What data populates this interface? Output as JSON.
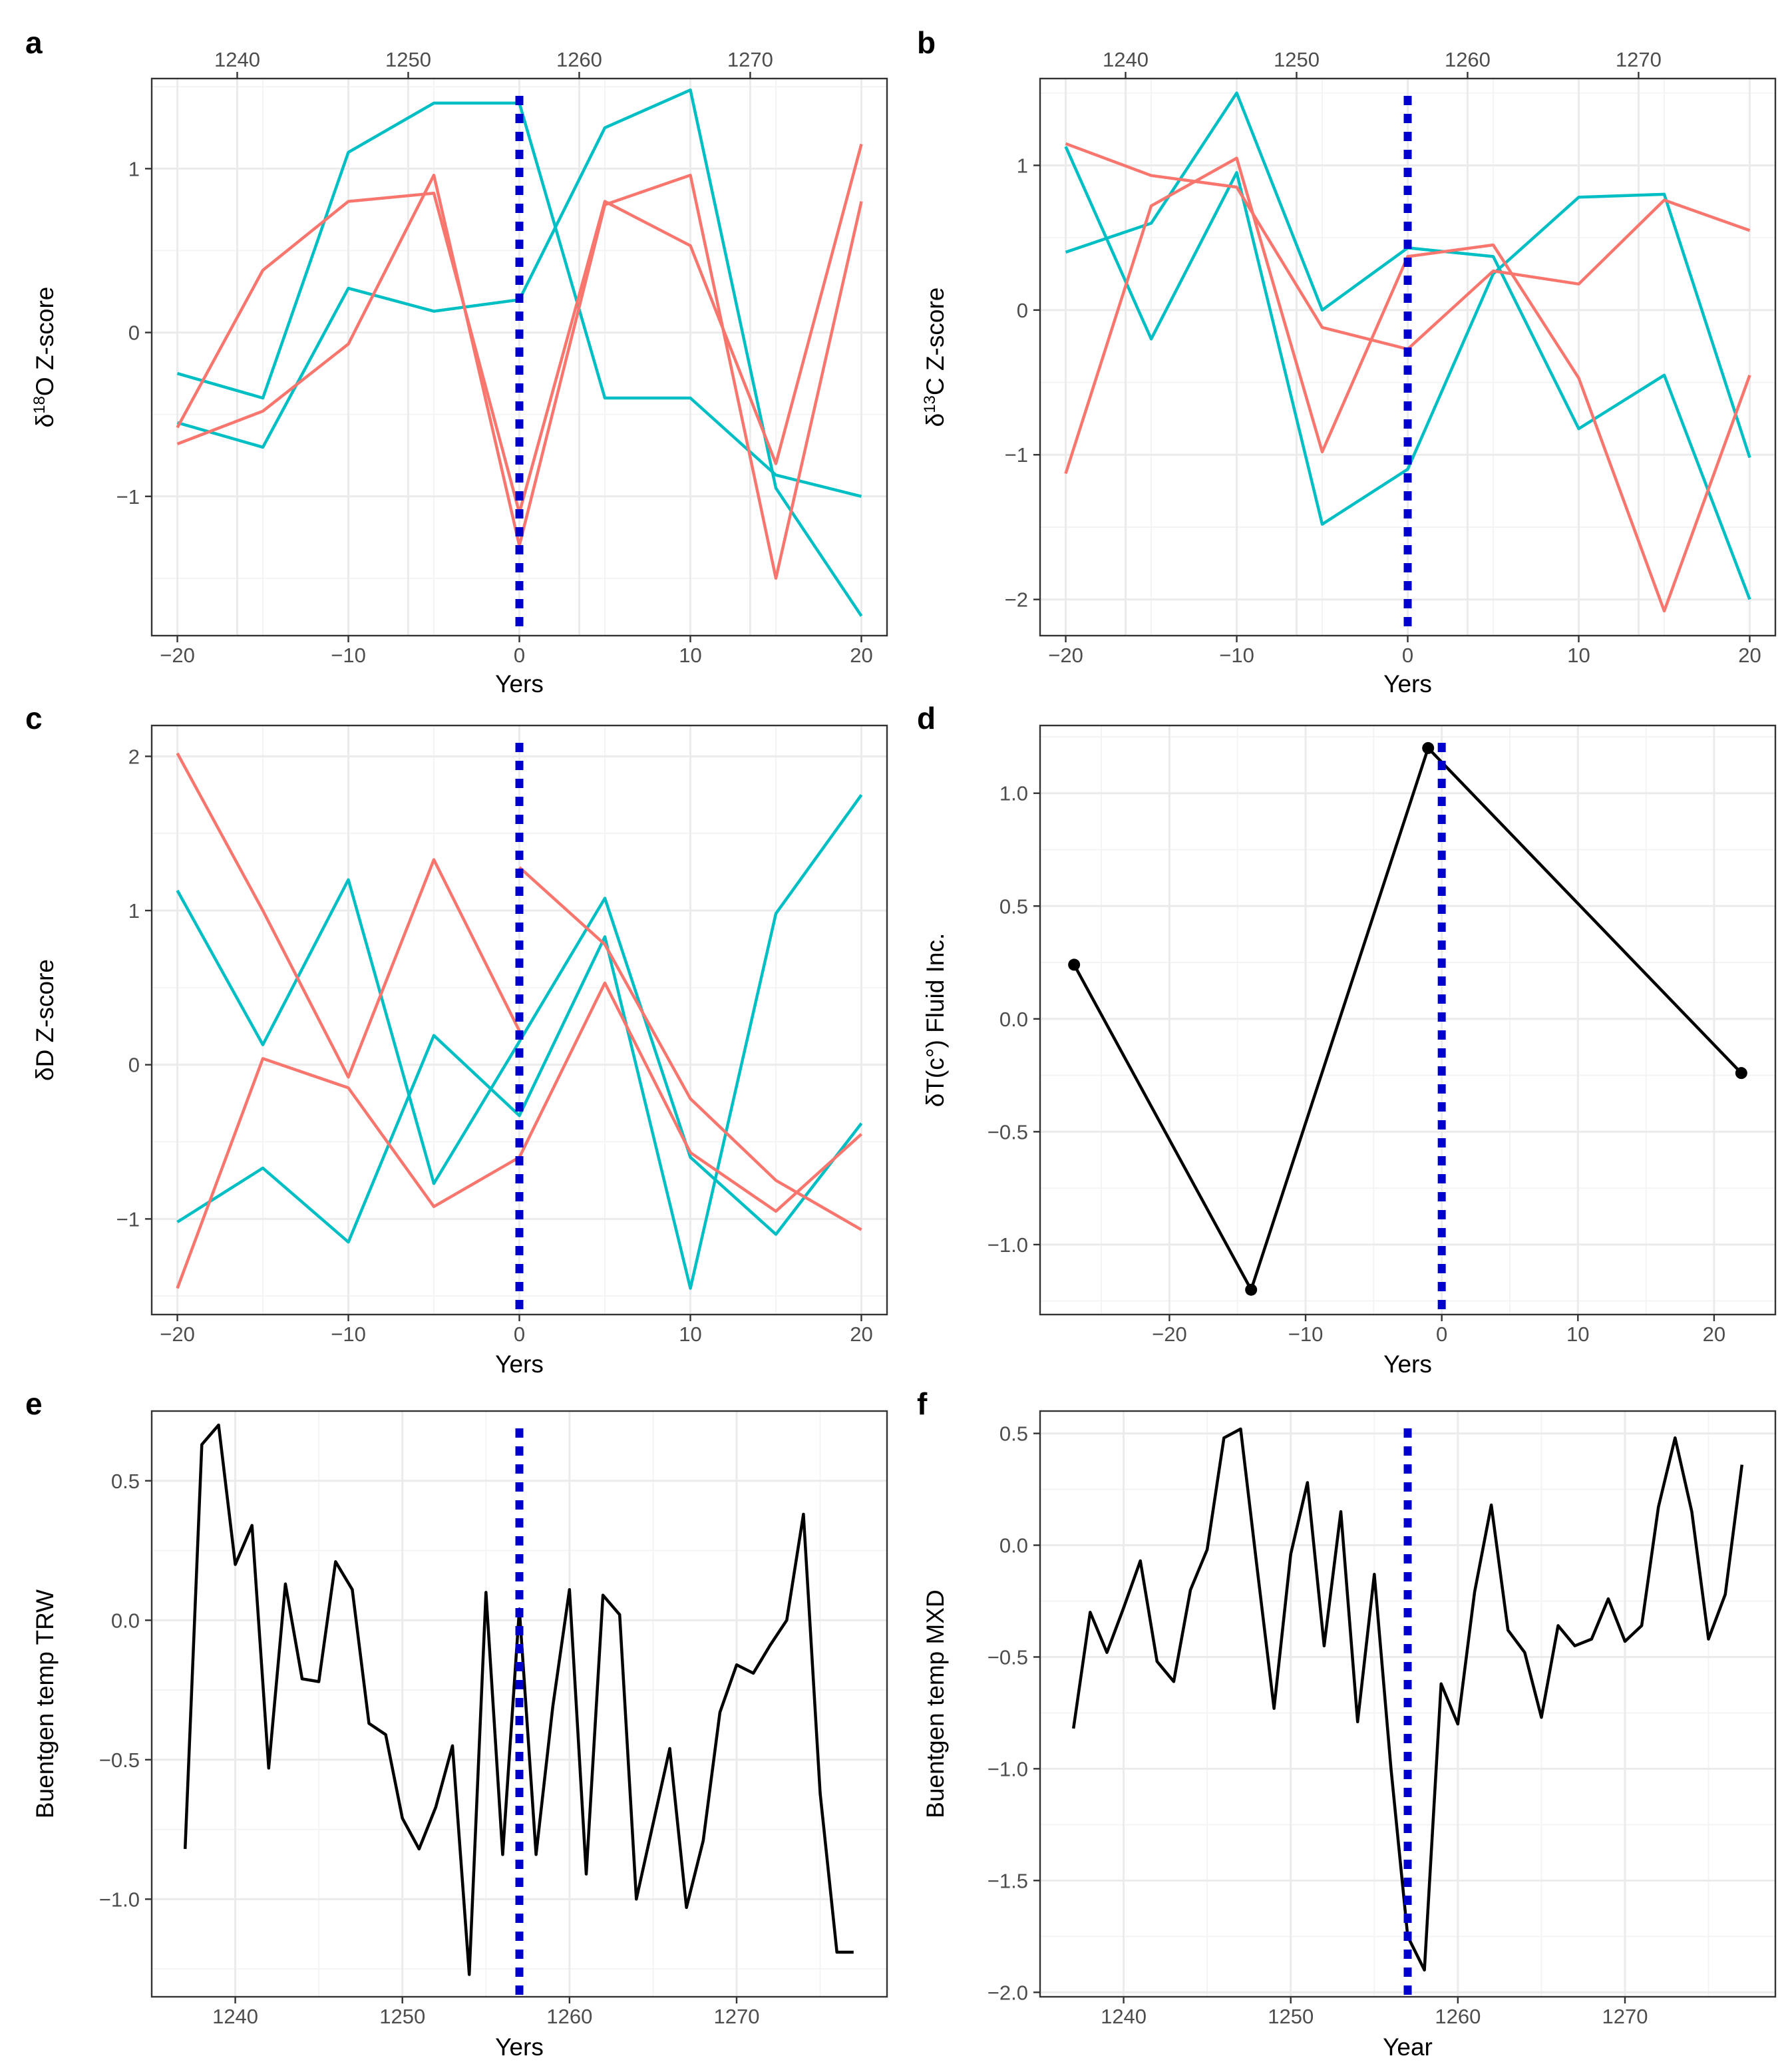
{
  "figure": {
    "colors": {
      "red": "#F8766D",
      "teal": "#00BFC4",
      "black": "#000000",
      "event_line": "#0000CC"
    }
  },
  "chart_data": [
    {
      "id": "a",
      "panel_label": "a",
      "type": "line",
      "xlabel": "Yers",
      "ylabel": "δ18O Z-score",
      "ylabel_parts": {
        "pre": "δ",
        "sup": "18",
        "post": "O Z-score"
      },
      "xlim": [
        -21.5,
        21.5
      ],
      "ylim": [
        -1.85,
        1.55
      ],
      "x_ticks": [
        -20,
        -10,
        0,
        10,
        20
      ],
      "x_tick_labels": [
        "−20",
        "−10",
        "0",
        "10",
        "20"
      ],
      "y_ticks": [
        -1,
        0,
        1
      ],
      "y_tick_labels": [
        "−1",
        "0",
        "1"
      ],
      "top_axis": {
        "ticks": [
          -16.5,
          -6.5,
          3.5,
          13.5
        ],
        "labels": [
          "1240",
          "1250",
          "1260",
          "1270"
        ]
      },
      "event_x": 0,
      "series": [
        {
          "name": "teal-1",
          "color": "teal",
          "x": [
            -20,
            -15,
            -10,
            -5,
            0,
            5,
            10,
            15,
            20
          ],
          "y": [
            -0.25,
            -0.4,
            1.1,
            1.4,
            1.4,
            -0.4,
            -0.4,
            -0.87,
            -1.0
          ]
        },
        {
          "name": "teal-2",
          "color": "teal",
          "x": [
            -20,
            -15,
            -10,
            -5,
            0,
            5,
            10,
            15,
            20
          ],
          "y": [
            -0.55,
            -0.7,
            0.27,
            0.13,
            0.2,
            1.25,
            1.48,
            -0.95,
            -1.73
          ]
        },
        {
          "name": "red-1",
          "color": "red",
          "x": [
            -20,
            -15,
            -10,
            -5,
            0,
            5,
            10,
            15,
            20
          ],
          "y": [
            -0.58,
            0.38,
            0.8,
            0.85,
            -1.1,
            0.8,
            0.53,
            -0.8,
            1.15
          ]
        },
        {
          "name": "red-2",
          "color": "red",
          "x": [
            -20,
            -15,
            -10,
            -5,
            0,
            5,
            10,
            15,
            20
          ],
          "y": [
            -0.68,
            -0.48,
            -0.07,
            0.96,
            -1.3,
            0.78,
            0.96,
            -1.5,
            0.8
          ]
        }
      ]
    },
    {
      "id": "b",
      "panel_label": "b",
      "type": "line",
      "xlabel": "Yers",
      "ylabel": "δ13C Z-score",
      "ylabel_parts": {
        "pre": "δ",
        "sup": "13",
        "post": "C Z-score"
      },
      "xlim": [
        -21.5,
        21.5
      ],
      "ylim": [
        -2.25,
        1.6
      ],
      "x_ticks": [
        -20,
        -10,
        0,
        10,
        20
      ],
      "x_tick_labels": [
        "−20",
        "−10",
        "0",
        "10",
        "20"
      ],
      "y_ticks": [
        -2,
        -1,
        0,
        1
      ],
      "y_tick_labels": [
        "−2",
        "−1",
        "0",
        "1"
      ],
      "top_axis": {
        "ticks": [
          -16.5,
          -6.5,
          3.5,
          13.5
        ],
        "labels": [
          "1240",
          "1250",
          "1260",
          "1270"
        ]
      },
      "event_x": 0,
      "series": [
        {
          "name": "teal-1",
          "color": "teal",
          "x": [
            -20,
            -15,
            -10,
            -5,
            0,
            5,
            10,
            15,
            20
          ],
          "y": [
            0.4,
            0.6,
            1.5,
            0.0,
            0.43,
            0.37,
            -0.82,
            -0.45,
            -2.0
          ]
        },
        {
          "name": "teal-2",
          "color": "teal",
          "x": [
            -20,
            -15,
            -10,
            -5,
            0,
            5,
            10,
            15,
            20
          ],
          "y": [
            1.13,
            -0.2,
            0.95,
            -1.48,
            -1.1,
            0.25,
            0.78,
            0.8,
            -1.02
          ]
        },
        {
          "name": "red-1",
          "color": "red",
          "x": [
            -20,
            -15,
            -10,
            -5,
            0,
            5,
            10,
            15,
            20
          ],
          "y": [
            1.15,
            0.93,
            0.85,
            -0.12,
            -0.27,
            0.27,
            0.18,
            0.76,
            0.55
          ]
        },
        {
          "name": "red-2",
          "color": "red",
          "x": [
            -20,
            -15,
            -10,
            -5,
            0,
            5,
            10,
            15,
            20
          ],
          "y": [
            -1.13,
            0.72,
            1.05,
            -0.98,
            0.37,
            0.45,
            -0.47,
            -2.08,
            -0.45
          ]
        }
      ]
    },
    {
      "id": "c",
      "panel_label": "c",
      "type": "line",
      "xlabel": "Yers",
      "ylabel": "δD Z-score",
      "xlim": [
        -21.5,
        21.5
      ],
      "ylim": [
        -1.62,
        2.2
      ],
      "x_ticks": [
        -20,
        -10,
        0,
        10,
        20
      ],
      "x_tick_labels": [
        "−20",
        "−10",
        "0",
        "10",
        "20"
      ],
      "y_ticks": [
        -1,
        0,
        1,
        2
      ],
      "y_tick_labels": [
        "−1",
        "0",
        "1",
        "2"
      ],
      "event_x": 0,
      "series": [
        {
          "name": "teal-1",
          "color": "teal",
          "x": [
            -20,
            -15,
            -10,
            -5,
            0,
            5,
            10,
            15,
            20
          ],
          "y": [
            1.13,
            0.13,
            1.2,
            -0.77,
            0.15,
            1.08,
            -0.6,
            -1.1,
            -0.38
          ]
        },
        {
          "name": "teal-2",
          "color": "teal",
          "x": [
            -20,
            -15,
            -10,
            -5,
            0,
            5,
            10,
            15,
            20
          ],
          "y": [
            -1.02,
            -0.67,
            -1.15,
            0.19,
            -0.33,
            0.83,
            -1.45,
            0.98,
            1.75
          ]
        },
        {
          "name": "red-1",
          "color": "red",
          "x": [
            -20,
            -15,
            -10,
            -5,
            0,
            5,
            10,
            15,
            20
          ],
          "y": [
            2.02,
            1.0,
            -0.08,
            1.33,
            0.22,
            null,
            null,
            null,
            null
          ]
        },
        {
          "name": "red-2",
          "color": "red",
          "x": [
            -20,
            -15,
            -10,
            -5,
            0,
            5,
            10,
            15,
            20
          ],
          "y": [
            -1.45,
            0.04,
            -0.15,
            -0.92,
            -0.6,
            0.53,
            -0.57,
            -0.95,
            -0.45
          ]
        },
        {
          "name": "red-3",
          "color": "red",
          "x": [
            0,
            5,
            10,
            15,
            20
          ],
          "y": [
            1.28,
            0.78,
            -0.22,
            -0.75,
            -1.07
          ]
        }
      ]
    },
    {
      "id": "d",
      "panel_label": "d",
      "type": "line",
      "xlabel": "Yers",
      "ylabel": "δT(c°) Fluid Inc.",
      "xlim": [
        -29.5,
        24.5
      ],
      "ylim": [
        -1.31,
        1.3
      ],
      "x_ticks": [
        -20,
        -10,
        0,
        10,
        20
      ],
      "x_tick_labels": [
        "−20",
        "−10",
        "0",
        "10",
        "20"
      ],
      "y_ticks": [
        -1.0,
        -0.5,
        0.0,
        0.5,
        1.0
      ],
      "y_tick_labels": [
        "−1.0",
        "−0.5",
        "0.0",
        "0.5",
        "1.0"
      ],
      "event_x": 0,
      "series": [
        {
          "name": "fluid-inclusion",
          "color": "black",
          "markers": true,
          "x": [
            -27,
            -14,
            -1,
            22
          ],
          "y": [
            0.24,
            -1.2,
            1.2,
            -0.24
          ]
        }
      ]
    },
    {
      "id": "e",
      "panel_label": "e",
      "type": "line",
      "xlabel": "Yers",
      "ylabel": "Buentgen temp TRW",
      "xlim": [
        1235,
        1279
      ],
      "ylim": [
        -1.35,
        0.75
      ],
      "x_ticks": [
        1240,
        1250,
        1260,
        1270
      ],
      "x_tick_labels": [
        "1240",
        "1250",
        "1260",
        "1270"
      ],
      "y_ticks": [
        -1.0,
        -0.5,
        0.0,
        0.5
      ],
      "y_tick_labels": [
        "−1.0",
        "−0.5",
        "0.0",
        "0.5"
      ],
      "event_x": 1257,
      "series": [
        {
          "name": "TRW",
          "color": "black",
          "x": [
            1237,
            1238,
            1239,
            1240,
            1241,
            1242,
            1243,
            1244,
            1245,
            1246,
            1247,
            1248,
            1249,
            1250,
            1251,
            1252,
            1253,
            1254,
            1255,
            1256,
            1257,
            1258,
            1259,
            1260,
            1261,
            1262,
            1263,
            1264,
            1265,
            1266,
            1267,
            1268,
            1269,
            1270,
            1271,
            1272,
            1273,
            1274,
            1275,
            1276,
            1277
          ],
          "y": [
            -0.82,
            0.63,
            0.7,
            0.2,
            0.34,
            -0.53,
            0.13,
            -0.21,
            -0.22,
            0.21,
            0.11,
            -0.37,
            -0.41,
            -0.71,
            -0.82,
            -0.67,
            -0.45,
            -1.27,
            0.1,
            -0.84,
            0.04,
            -0.84,
            -0.31,
            0.11,
            -0.91,
            0.09,
            0.02,
            -1.0,
            -0.73,
            -0.46,
            -1.03,
            -0.79,
            -0.33,
            -0.16,
            -0.19,
            -0.09,
            0.0,
            0.38,
            -0.62,
            -1.19,
            -1.19
          ]
        }
      ]
    },
    {
      "id": "f",
      "panel_label": "f",
      "type": "line",
      "xlabel": "Year",
      "ylabel": "Buentgen temp MXD",
      "xlim": [
        1235,
        1279
      ],
      "ylim": [
        -2.02,
        0.6
      ],
      "x_ticks": [
        1240,
        1250,
        1260,
        1270
      ],
      "x_tick_labels": [
        "1240",
        "1250",
        "1260",
        "1270"
      ],
      "y_ticks": [
        -2.0,
        -1.5,
        -1.0,
        -0.5,
        0.0,
        0.5
      ],
      "y_tick_labels": [
        "−2.0",
        "−1.5",
        "−1.0",
        "−0.5",
        "0.0",
        "0.5"
      ],
      "event_x": 1257,
      "series": [
        {
          "name": "MXD",
          "color": "black",
          "x": [
            1237,
            1238,
            1239,
            1240,
            1241,
            1242,
            1243,
            1244,
            1245,
            1246,
            1247,
            1248,
            1249,
            1250,
            1251,
            1252,
            1253,
            1254,
            1255,
            1256,
            1257,
            1258,
            1259,
            1260,
            1261,
            1262,
            1263,
            1264,
            1265,
            1266,
            1267,
            1268,
            1269,
            1270,
            1271,
            1272,
            1273,
            1274,
            1275,
            1276,
            1277
          ],
          "y": [
            -0.82,
            -0.3,
            -0.48,
            -0.28,
            -0.07,
            -0.52,
            -0.61,
            -0.2,
            -0.02,
            0.48,
            0.52,
            -0.11,
            -0.73,
            -0.04,
            0.28,
            -0.45,
            0.15,
            -0.79,
            -0.13,
            -1.0,
            -1.75,
            -1.9,
            -0.62,
            -0.8,
            -0.21,
            0.18,
            -0.38,
            -0.48,
            -0.77,
            -0.36,
            -0.45,
            -0.42,
            -0.24,
            -0.43,
            -0.36,
            0.17,
            0.48,
            0.15,
            -0.42,
            -0.22,
            0.36
          ]
        }
      ]
    }
  ]
}
